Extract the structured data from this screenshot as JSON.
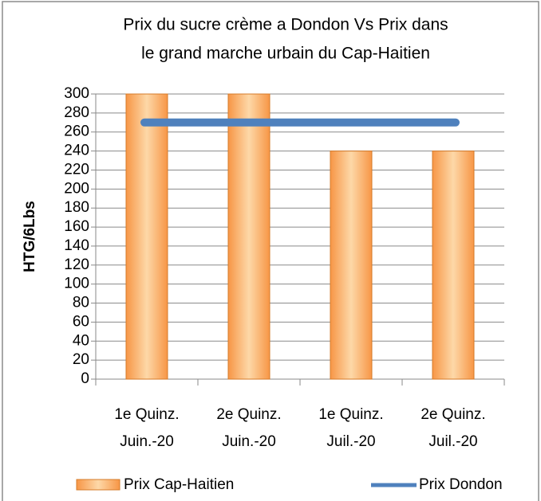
{
  "chart_data": {
    "type": "bar",
    "title": [
      "Prix du sucre crème a  Dondon Vs Prix dans",
      "le grand marche urbain du Cap-Haitien"
    ],
    "ylabel": "HTG/6Lbs",
    "categories": [
      [
        "1e Quinz.",
        "Juin.-20"
      ],
      [
        "2e Quinz.",
        "Juin.-20"
      ],
      [
        "1e Quinz.",
        "Juil.-20"
      ],
      [
        "2e Quinz.",
        "Juil.-20"
      ]
    ],
    "series": [
      {
        "name": "Prix Cap-Haitien",
        "type": "bar",
        "color": "#f79646",
        "values": [
          300,
          300,
          240,
          240
        ]
      },
      {
        "name": "Prix Dondon",
        "type": "line",
        "color": "#4f81bd",
        "values": [
          270,
          270,
          270,
          270
        ]
      }
    ],
    "ylim": [
      0,
      300
    ],
    "yticks": [
      0,
      20,
      40,
      60,
      80,
      100,
      120,
      140,
      160,
      180,
      200,
      220,
      240,
      260,
      280,
      300
    ],
    "grid": true
  }
}
